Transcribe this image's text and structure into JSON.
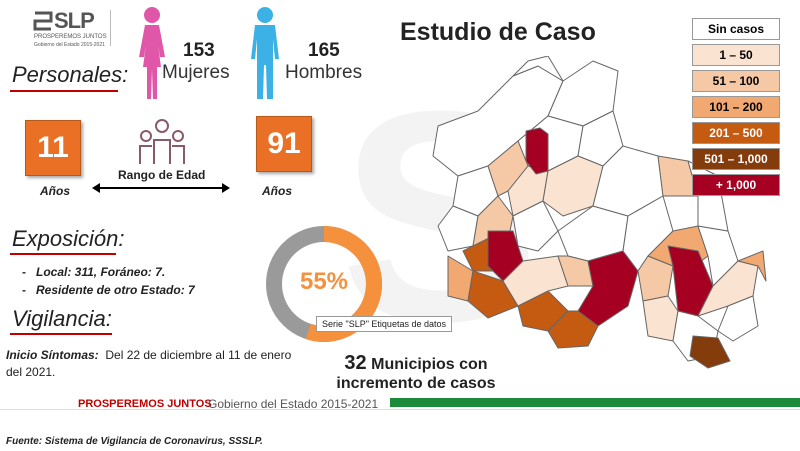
{
  "logo": {
    "text": "SLP",
    "tagline": "PROSPEREMOS JUNTOS",
    "sub": "Gobierno del Estado 2015-2021"
  },
  "title": "Estudio de Caso",
  "personales": {
    "heading": "Personales:",
    "mujeres_count": "153",
    "mujeres_label": "Mujeres",
    "hombres_count": "165",
    "hombres_label": "Hombres",
    "age_min": "11",
    "age_max": "91",
    "age_unit": "Años",
    "range_label": "Rango de Edad"
  },
  "exposicion": {
    "heading": "Exposición:",
    "items": [
      "Local: 311, Foráneo: 7.",
      "Residente de otro Estado: 7"
    ]
  },
  "vigilancia": {
    "heading": "Vigilancia:",
    "label": "Inicio Síntomas:",
    "text": "Del 22 de diciembre al 11 de enero del 2021."
  },
  "donut": {
    "percent_label": "55%",
    "value": 0.55,
    "tooltip": "Serie \"SLP\" Etiquetas de datos",
    "color_fill": "#f5913d",
    "color_rest": "#9a9a9a"
  },
  "municipios": {
    "count": "32",
    "line1": "Municipios con",
    "line2": "incremento de casos"
  },
  "legend": [
    {
      "label": "Sin casos",
      "color": "#ffffff",
      "text_color": "#000000"
    },
    {
      "label": "1 – 50",
      "color": "#fbe3d2",
      "text_color": "#000000"
    },
    {
      "label": "51 – 100",
      "color": "#f6c9a6",
      "text_color": "#000000"
    },
    {
      "label": "101 – 200",
      "color": "#f2a871",
      "text_color": "#000000"
    },
    {
      "label": "201 – 500",
      "color": "#c55a11",
      "text_color": "#ffffff"
    },
    {
      "label": "501 – 1,000",
      "color": "#843c0c",
      "text_color": "#ffffff"
    },
    {
      "label": "+ 1,000",
      "color": "#a50021",
      "text_color": "#ffffff"
    }
  ],
  "footer": {
    "brand": "PROSPEREMOS JUNTOS",
    "gov": "Gobierno del Estado 2015-2021"
  },
  "source": "Fuente: Sistema de Vigilancia de Coronavirus, SSSLP."
}
